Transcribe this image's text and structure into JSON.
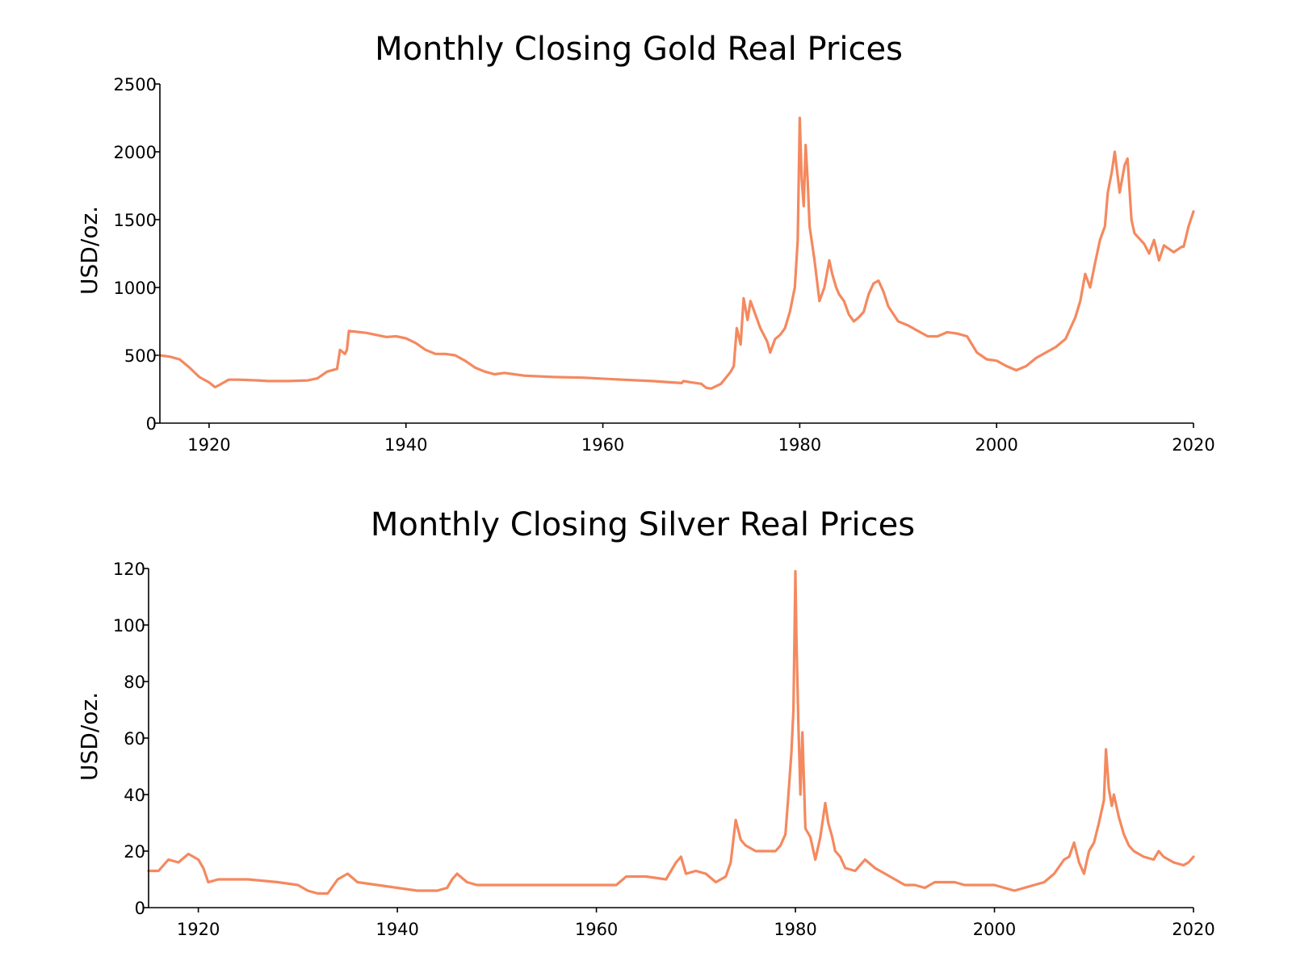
{
  "chart_data": [
    {
      "type": "line",
      "title": "Monthly Closing Gold Real Prices",
      "xlabel": "",
      "ylabel": "USD/oz.",
      "xlim": [
        1915,
        2020
      ],
      "ylim": [
        0,
        2500
      ],
      "xticks": [
        1920,
        1940,
        1960,
        1980,
        2000,
        2020
      ],
      "yticks": [
        0,
        500,
        1000,
        1500,
        2000,
        2500
      ],
      "grid": false,
      "line_color": "#f4895f",
      "series": [
        {
          "x": [
            1915,
            1916,
            1917,
            1918,
            1919,
            1920,
            1920.6,
            1921,
            1922,
            1923,
            1925,
            1926,
            1928,
            1930,
            1931,
            1932,
            1933,
            1933.3,
            1933.8,
            1934.0,
            1934.2,
            1936,
            1938,
            1939,
            1940,
            1941,
            1942,
            1943,
            1944,
            1945,
            1946,
            1947,
            1948,
            1949,
            1950,
            1951,
            1952,
            1955,
            1958,
            1962,
            1965,
            1968,
            1968.2,
            1969,
            1970,
            1970.5,
            1971,
            1972,
            1973,
            1973.3,
            1973.6,
            1974,
            1974.3,
            1974.7,
            1975,
            1975.5,
            1976,
            1976.7,
            1977,
            1977.5,
            1978,
            1978.5,
            1979,
            1979.5,
            1979.8,
            1980.0,
            1980.2,
            1980.4,
            1980.6,
            1980.8,
            1981,
            1981.5,
            1982,
            1982.5,
            1983,
            1983.3,
            1983.7,
            1984,
            1984.5,
            1985,
            1985.5,
            1986,
            1986.5,
            1987,
            1987.5,
            1988,
            1988.5,
            1989,
            1990,
            1991,
            1992,
            1993,
            1994,
            1995,
            1996,
            1997,
            1998,
            1999,
            2000,
            2001,
            2002,
            2003,
            2004,
            2005,
            2006,
            2007,
            2008,
            2008.5,
            2009,
            2009.5,
            2010,
            2010.5,
            2011,
            2011.3,
            2011.7,
            2012,
            2012.5,
            2013,
            2013.3,
            2013.7,
            2014,
            2015,
            2015.5,
            2016,
            2016.5,
            2017,
            2018,
            2018.8,
            2019,
            2019.5,
            2020
          ],
          "y": [
            500,
            490,
            470,
            410,
            340,
            300,
            265,
            280,
            320,
            320,
            315,
            310,
            310,
            315,
            330,
            380,
            400,
            540,
            510,
            540,
            680,
            665,
            635,
            640,
            625,
            590,
            540,
            510,
            510,
            500,
            460,
            410,
            380,
            360,
            370,
            360,
            350,
            340,
            335,
            320,
            310,
            295,
            310,
            300,
            290,
            260,
            255,
            290,
            380,
            420,
            700,
            580,
            920,
            760,
            900,
            800,
            700,
            600,
            520,
            620,
            650,
            700,
            820,
            1000,
            1350,
            2250,
            1800,
            1600,
            2050,
            1800,
            1450,
            1200,
            900,
            1000,
            1200,
            1100,
            1000,
            950,
            900,
            800,
            750,
            780,
            820,
            950,
            1030,
            1050,
            970,
            860,
            750,
            720,
            680,
            640,
            640,
            670,
            660,
            640,
            520,
            470,
            460,
            420,
            390,
            420,
            480,
            520,
            560,
            620,
            780,
            900,
            1100,
            1000,
            1180,
            1350,
            1450,
            1700,
            1850,
            2000,
            1700,
            1900,
            1950,
            1500,
            1400,
            1320,
            1250,
            1350,
            1200,
            1310,
            1260,
            1300,
            1300,
            1450,
            1560
          ]
        }
      ]
    },
    {
      "type": "line",
      "title": "Monthly Closing Silver Real Prices",
      "xlabel": "",
      "ylabel": "USD/oz.",
      "xlim": [
        1915,
        2020
      ],
      "ylim": [
        0,
        120
      ],
      "xticks": [
        1920,
        1940,
        1960,
        1980,
        2000,
        2020
      ],
      "yticks": [
        0,
        20,
        40,
        60,
        80,
        100,
        120
      ],
      "grid": false,
      "line_color": "#f4895f",
      "series": [
        {
          "x": [
            1915,
            1916,
            1917,
            1918,
            1919,
            1920,
            1920.5,
            1921,
            1922,
            1925,
            1928,
            1930,
            1931,
            1932,
            1933,
            1934,
            1935,
            1936,
            1938,
            1940,
            1942,
            1944,
            1945,
            1945.5,
            1946,
            1947,
            1948,
            1950,
            1955,
            1960,
            1962,
            1963,
            1965,
            1967,
            1968,
            1968.5,
            1969,
            1970,
            1971,
            1972,
            1973,
            1973.5,
            1974,
            1974.5,
            1975,
            1976,
            1977,
            1978,
            1978.5,
            1979,
            1979.3,
            1979.6,
            1979.8,
            1980.0,
            1980.1,
            1980.3,
            1980.5,
            1980.7,
            1981,
            1981.5,
            1982,
            1982.5,
            1983,
            1983.3,
            1983.7,
            1984,
            1984.5,
            1985,
            1986,
            1987,
            1988,
            1989,
            1990,
            1991,
            1992,
            1993,
            1994,
            1995,
            1996,
            1997,
            1998,
            1999,
            2000,
            2001,
            2002,
            2003,
            2004,
            2005,
            2006,
            2007,
            2007.5,
            2008,
            2008.5,
            2009,
            2009.5,
            2010,
            2010.5,
            2011,
            2011.2,
            2011.5,
            2011.8,
            2012,
            2012.5,
            2013,
            2013.5,
            2014,
            2015,
            2016,
            2016.5,
            2017,
            2018,
            2019,
            2019.5,
            2020
          ],
          "y": [
            13,
            13,
            17,
            16,
            19,
            17,
            14,
            9,
            10,
            10,
            9,
            8,
            6,
            5,
            5,
            10,
            12,
            9,
            8,
            7,
            6,
            6,
            7,
            10,
            12,
            9,
            8,
            8,
            8,
            8,
            8,
            11,
            11,
            10,
            16,
            18,
            12,
            13,
            12,
            9,
            11,
            16,
            31,
            24,
            22,
            20,
            20,
            20,
            22,
            26,
            40,
            55,
            70,
            119,
            95,
            65,
            40,
            62,
            28,
            25,
            17,
            25,
            37,
            30,
            25,
            20,
            18,
            14,
            13,
            17,
            14,
            12,
            10,
            8,
            8,
            7,
            9,
            9,
            9,
            8,
            8,
            8,
            8,
            7,
            6,
            7,
            8,
            9,
            12,
            17,
            18,
            23,
            16,
            12,
            20,
            23,
            30,
            38,
            56,
            42,
            36,
            40,
            32,
            26,
            22,
            20,
            18,
            17,
            20,
            18,
            16,
            15,
            16,
            18
          ]
        }
      ]
    }
  ]
}
